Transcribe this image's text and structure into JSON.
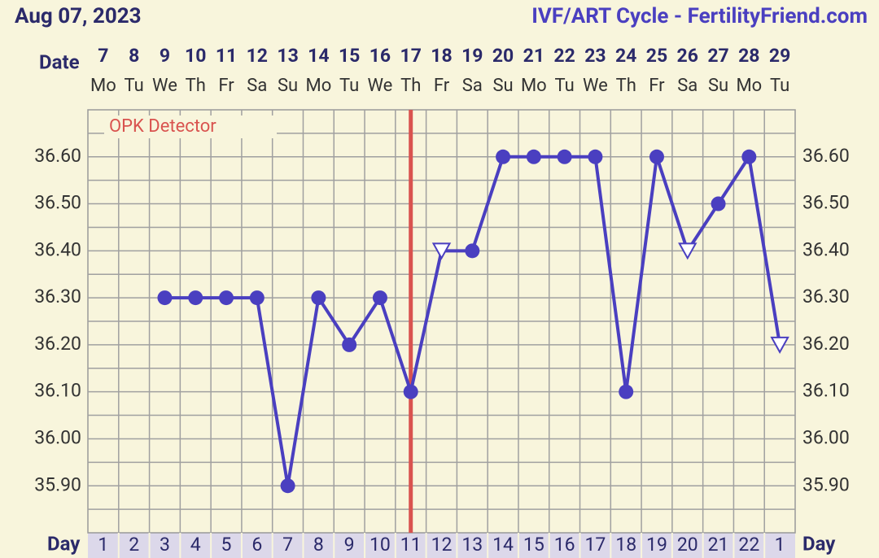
{
  "chart_data": {
    "type": "line",
    "title": "Aug 07, 2023",
    "subtitle": "IVF/ART Cycle - FertilityFriend.com",
    "x_label": "Date",
    "day_label": "Day",
    "day_label_right": "Day",
    "annotation": "OPK Detector",
    "categories": [
      "7",
      "8",
      "9",
      "10",
      "11",
      "12",
      "13",
      "14",
      "15",
      "16",
      "17",
      "18",
      "19",
      "20",
      "21",
      "22",
      "23",
      "24",
      "25",
      "26",
      "27",
      "28",
      "29"
    ],
    "weekdays": [
      "Mo",
      "Tu",
      "We",
      "Th",
      "Fr",
      "Sa",
      "Su",
      "Mo",
      "Tu",
      "We",
      "Th",
      "Fr",
      "Sa",
      "Su",
      "Mo",
      "Tu",
      "We",
      "Th",
      "Fr",
      "Sa",
      "Su",
      "Mo",
      "Tu"
    ],
    "cycle_days": [
      1,
      2,
      3,
      4,
      5,
      6,
      7,
      8,
      9,
      10,
      11,
      12,
      13,
      14,
      15,
      16,
      17,
      18,
      19,
      20,
      21,
      22,
      1
    ],
    "series": [
      {
        "color": "#4a3fc0",
        "values": [
          null,
          null,
          36.3,
          36.3,
          36.3,
          36.3,
          35.9,
          36.3,
          36.2,
          36.3,
          36.1,
          36.4,
          36.4,
          36.6,
          36.6,
          36.6,
          36.6,
          36.1,
          36.6,
          36.4,
          36.5,
          36.6,
          36.2
        ],
        "markers": [
          null,
          null,
          "circle",
          "circle",
          "circle",
          "circle",
          "circle",
          "circle",
          "circle",
          "circle",
          "circle",
          "triangle",
          "circle",
          "circle",
          "circle",
          "circle",
          "circle",
          "circle",
          "circle",
          "triangle",
          "circle",
          "circle",
          "triangle"
        ]
      }
    ],
    "vline": {
      "x": "17",
      "color": "#d9534f"
    },
    "ylim": [
      35.8,
      36.7
    ],
    "yticks": [
      {
        "value": 35.9,
        "label": "35.90"
      },
      {
        "value": 36.0,
        "label": "36.00"
      },
      {
        "value": 36.1,
        "label": "36.10"
      },
      {
        "value": 36.2,
        "label": "36.20"
      },
      {
        "value": 36.3,
        "label": "36.30"
      },
      {
        "value": 36.4,
        "label": "36.40"
      },
      {
        "value": 36.5,
        "label": "36.50"
      },
      {
        "value": 36.6,
        "label": "36.60"
      }
    ],
    "minor_yticks": [
      35.85,
      35.95,
      36.05,
      36.15,
      36.25,
      36.35,
      36.45,
      36.55,
      36.65
    ],
    "grid": true
  }
}
